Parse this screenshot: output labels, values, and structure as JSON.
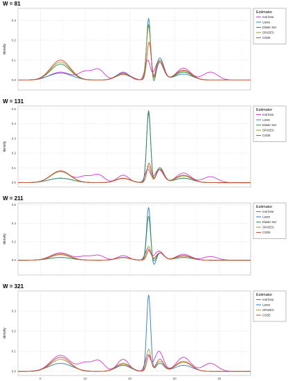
{
  "figure": {
    "ylabel": "density",
    "legend_title": "Estimator",
    "legend_position": "top-right"
  },
  "colors": {
    "real beta": "#cc33cc",
    "Lasso": "#2a78c8",
    "Elastic Net": "#2f8f4e",
    "SPADES": "#9a9a2a",
    "CSDE": "#d2452c"
  },
  "chart_data": [
    {
      "type": "line",
      "title": "W = 81",
      "xlim": [
        -5,
        47
      ],
      "x_ticks": [
        "0",
        "10",
        "20",
        "30",
        "40"
      ],
      "ylim": [
        -0.05,
        0.36
      ],
      "y_ticks": [
        "0.0",
        "0.1",
        "0.2",
        "0.3"
      ],
      "grid": true,
      "series": [
        {
          "name": "real beta",
          "peaks": [
            [
              4.5,
              0.04,
              2.4
            ],
            [
              10,
              0.04,
              1.4
            ],
            [
              13,
              0.052,
              1.3
            ],
            [
              18.5,
              0.04,
              1.3
            ],
            [
              24,
              0.1,
              0.6
            ],
            [
              26.5,
              0.095,
              1.0
            ],
            [
              32,
              0.06,
              1.6
            ],
            [
              38,
              0.04,
              1.6
            ]
          ],
          "dip": [
            25,
            -0.015,
            0.6
          ]
        },
        {
          "name": "Lasso",
          "peaks": [
            [
              4.5,
              0.035,
              2.6
            ],
            [
              18.5,
              0.035,
              1.6
            ],
            [
              24.2,
              0.31,
              0.45
            ],
            [
              26.7,
              0.11,
              0.9
            ],
            [
              32,
              0.03,
              2.0
            ]
          ],
          "dip": [
            25.2,
            -0.03,
            0.5
          ]
        },
        {
          "name": "Elastic Net",
          "peaks": [
            [
              4.5,
              0.08,
              2.2
            ],
            [
              18.5,
              0.03,
              1.6
            ],
            [
              24.2,
              0.28,
              0.5
            ],
            [
              26.7,
              0.1,
              0.9
            ],
            [
              32,
              0.04,
              1.8
            ]
          ],
          "dip": [
            25.3,
            -0.055,
            0.5
          ]
        },
        {
          "name": "SPADES",
          "peaks": [
            [
              4.5,
              0.09,
              2.2
            ],
            [
              18.5,
              0.028,
              1.6
            ],
            [
              24.2,
              0.27,
              0.5
            ],
            [
              26.7,
              0.1,
              0.9
            ],
            [
              32,
              0.045,
              1.8
            ]
          ],
          "dip": [
            25.3,
            -0.04,
            0.5
          ]
        },
        {
          "name": "CSDE",
          "peaks": [
            [
              4.5,
              0.1,
              2.2
            ],
            [
              18.5,
              0.03,
              1.6
            ],
            [
              24.3,
              0.19,
              0.5
            ],
            [
              26.7,
              0.09,
              0.9
            ],
            [
              32,
              0.05,
              1.8
            ]
          ],
          "dip": [
            25.4,
            -0.03,
            0.5
          ]
        }
      ]
    },
    {
      "type": "line",
      "title": "W = 131",
      "xlim": [
        -5,
        47
      ],
      "x_ticks": [
        "0",
        "10",
        "20",
        "30",
        "40"
      ],
      "ylim": [
        -0.03,
        0.52
      ],
      "y_ticks": [
        "0.0",
        "0.1",
        "0.2",
        "0.3",
        "0.4",
        "0.5"
      ],
      "grid": true,
      "series": [
        {
          "name": "real beta",
          "peaks": [
            [
              4.5,
              0.075,
              2.2
            ],
            [
              10,
              0.04,
              1.4
            ],
            [
              13,
              0.052,
              1.3
            ],
            [
              18.5,
              0.05,
              1.3
            ],
            [
              24,
              0.09,
              0.6
            ],
            [
              26.5,
              0.09,
              1.0
            ],
            [
              32,
              0.065,
              1.6
            ],
            [
              38,
              0.04,
              1.6
            ]
          ],
          "dip": [
            25,
            -0.01,
            0.6
          ]
        },
        {
          "name": "Lasso",
          "peaks": [
            [
              4.5,
              0.03,
              2.6
            ],
            [
              18.5,
              0.028,
              1.6
            ],
            [
              24.2,
              0.47,
              0.45
            ],
            [
              26.7,
              0.1,
              0.9
            ],
            [
              32,
              0.03,
              2.0
            ]
          ],
          "dip": [
            25.2,
            -0.02,
            0.5
          ]
        },
        {
          "name": "Elastic Net",
          "peaks": [
            [
              4.5,
              0.03,
              2.6
            ],
            [
              18.5,
              0.028,
              1.6
            ],
            [
              24.2,
              0.49,
              0.45
            ],
            [
              26.7,
              0.1,
              0.9
            ],
            [
              32,
              0.03,
              2.0
            ]
          ],
          "dip": [
            25.2,
            -0.02,
            0.5
          ]
        },
        {
          "name": "SPADES",
          "peaks": [
            [
              4.5,
              0.075,
              2.2
            ],
            [
              18.5,
              0.028,
              1.6
            ],
            [
              24.2,
              0.11,
              0.5
            ],
            [
              26.7,
              0.09,
              0.9
            ],
            [
              32,
              0.045,
              1.8
            ]
          ],
          "dip": [
            25.3,
            -0.015,
            0.5
          ]
        },
        {
          "name": "CSDE",
          "peaks": [
            [
              4.5,
              0.08,
              2.2
            ],
            [
              18.5,
              0.03,
              1.6
            ],
            [
              24.3,
              0.13,
              0.5
            ],
            [
              26.7,
              0.09,
              0.9
            ],
            [
              32,
              0.05,
              1.8
            ]
          ],
          "dip": [
            25.4,
            -0.015,
            0.5
          ]
        }
      ]
    },
    {
      "type": "line",
      "title": "W = 211",
      "xlim": [
        -5,
        47
      ],
      "x_ticks": [
        "0",
        "10",
        "20",
        "30",
        "40"
      ],
      "ylim": [
        -0.16,
        0.62
      ],
      "y_ticks": [
        "0.0",
        "0.2",
        "0.4",
        "0.6"
      ],
      "grid": true,
      "series": [
        {
          "name": "real beta",
          "peaks": [
            [
              4.5,
              0.08,
              2.2
            ],
            [
              10,
              0.04,
              1.4
            ],
            [
              13,
              0.052,
              1.3
            ],
            [
              18.5,
              0.05,
              1.3
            ],
            [
              24,
              0.12,
              0.6
            ],
            [
              26.5,
              0.1,
              1.0
            ],
            [
              32,
              0.065,
              1.6
            ],
            [
              38,
              0.04,
              1.6
            ]
          ],
          "dip": [
            25,
            -0.01,
            0.6
          ]
        },
        {
          "name": "Lasso",
          "peaks": [
            [
              4.5,
              0.03,
              2.6
            ],
            [
              18.5,
              0.028,
              1.6
            ],
            [
              24.2,
              0.58,
              0.45
            ],
            [
              26.7,
              0.08,
              0.9
            ],
            [
              32,
              0.03,
              2.0
            ]
          ],
          "dip": [
            25.3,
            -0.09,
            0.55
          ]
        },
        {
          "name": "Elastic Net",
          "peaks": [
            [
              4.5,
              0.03,
              2.6
            ],
            [
              18.5,
              0.028,
              1.6
            ],
            [
              24.2,
              0.48,
              0.45
            ],
            [
              26.7,
              0.08,
              0.9
            ],
            [
              32,
              0.03,
              2.0
            ]
          ],
          "dip": [
            25.3,
            -0.05,
            0.55
          ]
        },
        {
          "name": "SPADES",
          "peaks": [
            [
              4.5,
              0.07,
              2.2
            ],
            [
              18.5,
              0.03,
              1.6
            ],
            [
              24.2,
              0.15,
              0.5
            ],
            [
              26.7,
              0.08,
              0.9
            ],
            [
              32,
              0.045,
              1.8
            ]
          ],
          "dip": [
            25.3,
            -0.02,
            0.5
          ]
        },
        {
          "name": "CSDE",
          "peaks": [
            [
              4.5,
              0.06,
              2.2
            ],
            [
              18.5,
              0.03,
              1.6
            ],
            [
              24.3,
              0.11,
              0.5
            ],
            [
              26.7,
              0.08,
              0.9
            ],
            [
              32,
              0.05,
              1.8
            ]
          ],
          "dip": [
            25.4,
            -0.015,
            0.5
          ]
        }
      ]
    },
    {
      "type": "line",
      "title": "W = 321",
      "xlim": [
        -5,
        47
      ],
      "x_ticks": [
        "0",
        "10",
        "20",
        "30",
        "40"
      ],
      "ylim": [
        -0.02,
        0.4
      ],
      "y_ticks": [
        "0.0",
        "0.1",
        "0.2",
        "0.3"
      ],
      "grid": true,
      "series": [
        {
          "name": "real beta",
          "peaks": [
            [
              4.5,
              0.08,
              2.2
            ],
            [
              10,
              0.04,
              1.4
            ],
            [
              13,
              0.052,
              1.3
            ],
            [
              18.5,
              0.06,
              1.3
            ],
            [
              24,
              0.08,
              0.6
            ],
            [
              26.5,
              0.1,
              1.0
            ],
            [
              32,
              0.07,
              1.6
            ],
            [
              38,
              0.04,
              1.6
            ]
          ],
          "dip": [
            25,
            -0.005,
            0.6
          ]
        },
        {
          "name": "Lasso",
          "peaks": [
            [
              4.5,
              0.04,
              2.6
            ],
            [
              18.5,
              0.03,
              1.6
            ],
            [
              24.2,
              0.38,
              0.45
            ],
            [
              26.7,
              0.04,
              0.9
            ],
            [
              32,
              0.03,
              2.0
            ]
          ],
          "dip": [
            25.3,
            -0.005,
            0.5
          ]
        },
        {
          "name": "SPADES",
          "peaks": [
            [
              4.5,
              0.06,
              2.2
            ],
            [
              18.5,
              0.035,
              1.6
            ],
            [
              24.2,
              0.11,
              0.5
            ],
            [
              26.7,
              0.05,
              0.9
            ],
            [
              32,
              0.045,
              1.8
            ]
          ],
          "dip": [
            25.3,
            -0.005,
            0.5
          ]
        },
        {
          "name": "CSDE",
          "peaks": [
            [
              4.5,
              0.07,
              2.2
            ],
            [
              18.5,
              0.04,
              1.6
            ],
            [
              24.3,
              0.08,
              0.5
            ],
            [
              26.7,
              0.06,
              0.9
            ],
            [
              32,
              0.05,
              1.8
            ]
          ],
          "dip": [
            25.4,
            -0.005,
            0.5
          ]
        }
      ]
    }
  ]
}
